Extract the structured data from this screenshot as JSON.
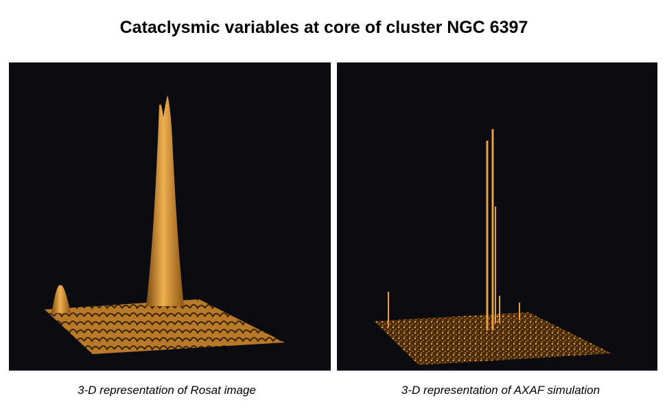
{
  "header": {
    "title": "Cataclysmic variables at core of cluster NGC 6397"
  },
  "panels": [
    {
      "caption": "3-D representation of Rosat image"
    },
    {
      "caption": "3-D representation of AXAF simulation"
    }
  ]
}
